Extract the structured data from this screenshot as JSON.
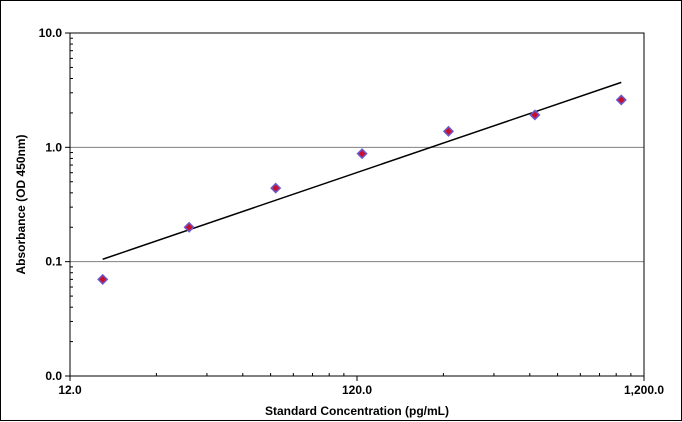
{
  "chart_data": {
    "type": "scatter",
    "xlabel": "Standard Concentration (pg/mL)",
    "ylabel": "Absorbance (OD 450nm)",
    "xscale": "log",
    "yscale": "log",
    "xlim": [
      12,
      1200
    ],
    "ylim": [
      0.01,
      10
    ],
    "x_tick_labels": [
      "12.0",
      "120.0",
      "1,200.0"
    ],
    "y_tick_labels": [
      "10.0",
      "1.0",
      "0.1",
      "0.0"
    ],
    "y_tick_values": [
      10,
      1,
      0.1,
      0.01
    ],
    "grid": "horizontal major lines",
    "legend": "none",
    "series": [
      {
        "marker": "diamond",
        "x": [
          15.6,
          31.2,
          62.5,
          125,
          250,
          500,
          1000
        ],
        "y": [
          0.07,
          0.2,
          0.44,
          0.88,
          1.38,
          1.92,
          2.6
        ]
      }
    ],
    "fit_line": {
      "type": "linear-log-log",
      "x": [
        15.6,
        1000
      ],
      "y": [
        0.105,
        3.7
      ]
    },
    "colors": {
      "marker_fill": "#c8102e",
      "marker_edge": "#6a5acd",
      "fit_line": "#000000",
      "grid": "#808080"
    }
  }
}
